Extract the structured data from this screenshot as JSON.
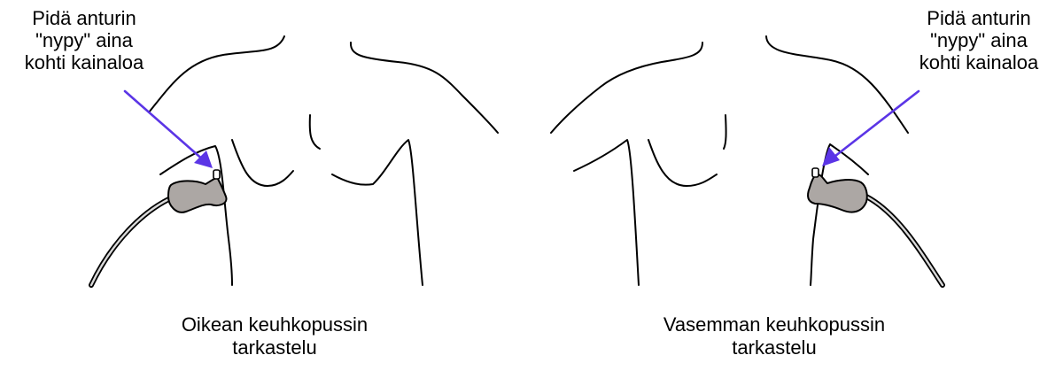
{
  "colors": {
    "outline": "#000000",
    "probe": "#aca7a4",
    "pointer_arrow": "#5b35e6",
    "background": "#ffffff"
  },
  "panels": [
    {
      "note_lines": [
        "Pidä anturin",
        "\"nypy\" aina",
        "kohti kainaloa"
      ],
      "caption_lines": [
        "Oikean keuhkopussin",
        "tarkastelu"
      ]
    },
    {
      "note_lines": [
        "Pidä anturin",
        "\"nypy\" aina",
        "kohti kainaloa"
      ],
      "caption_lines": [
        "Vasemman keuhkopussin",
        "tarkastelu"
      ]
    }
  ]
}
